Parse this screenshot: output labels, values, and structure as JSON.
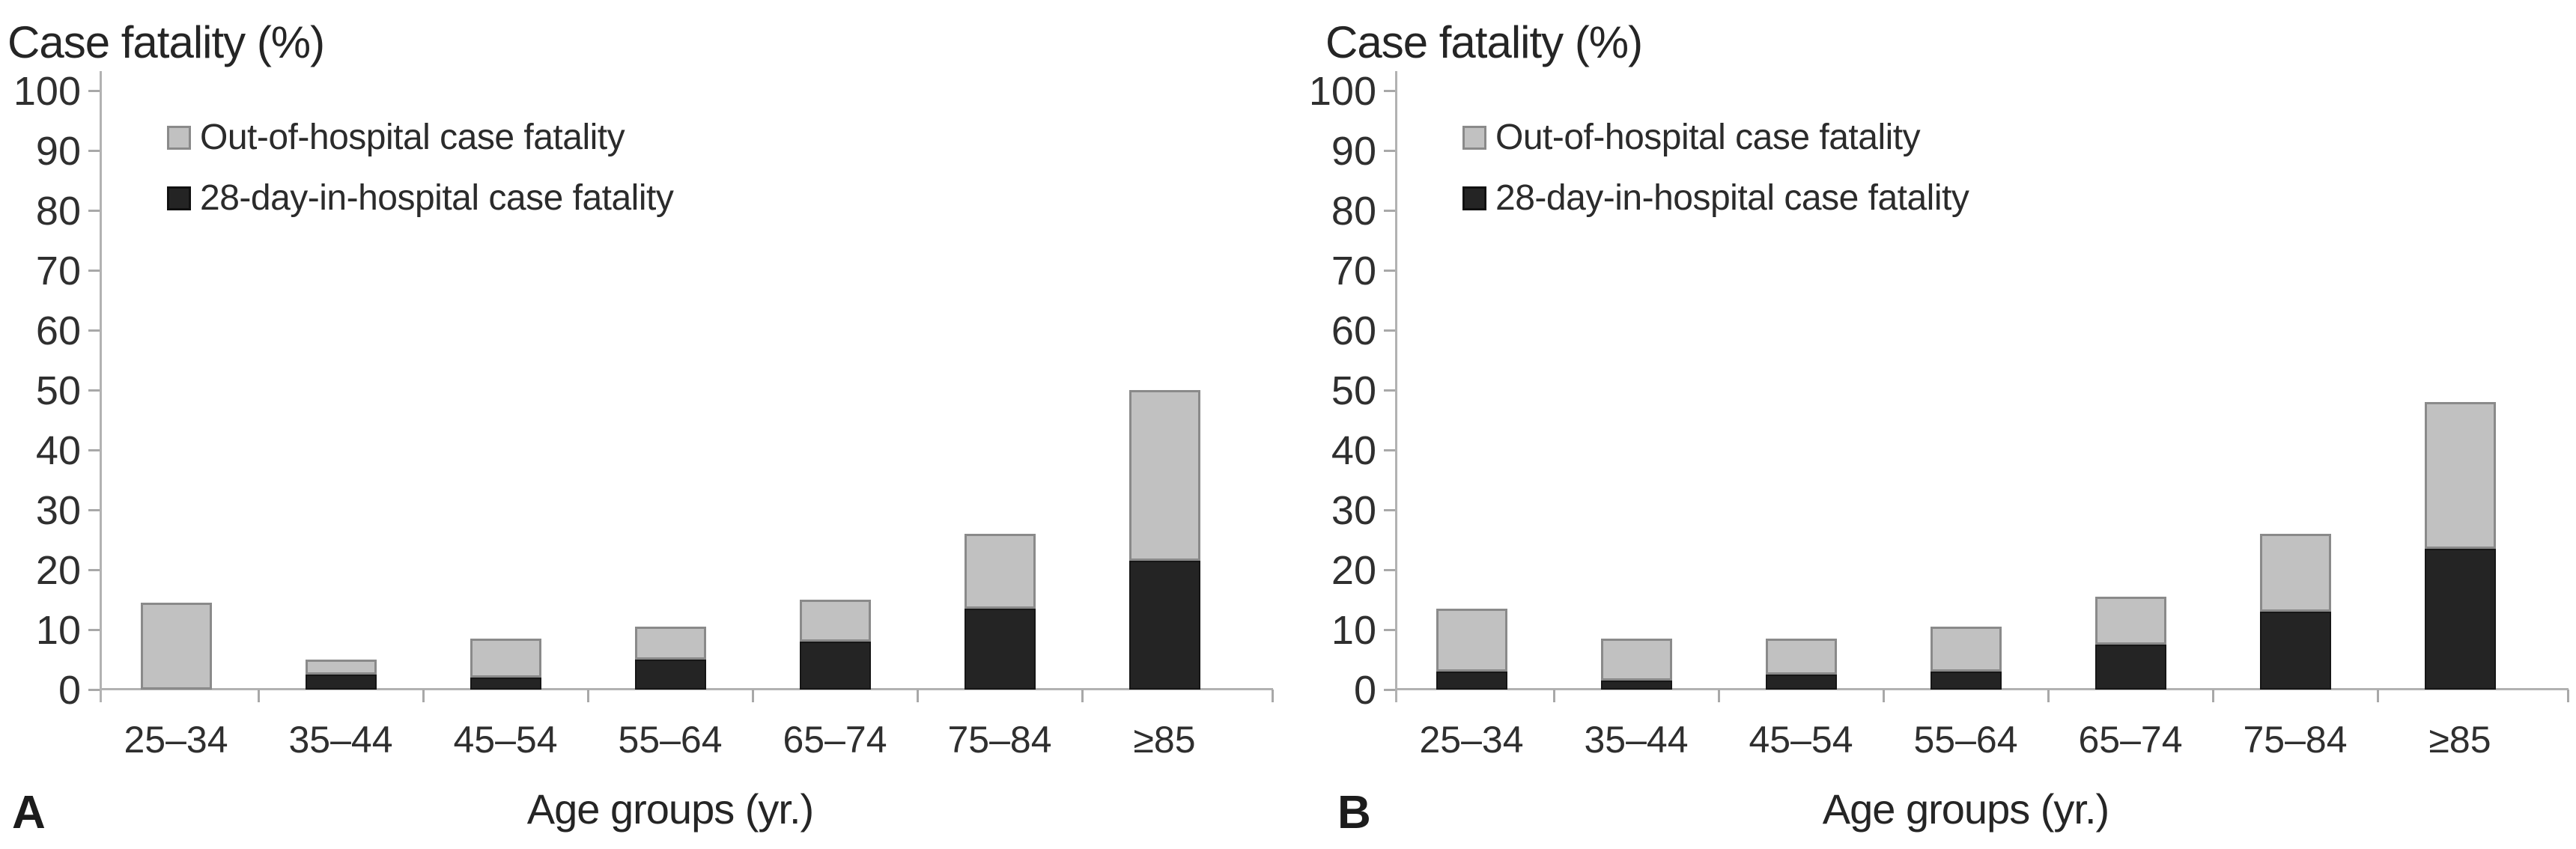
{
  "colors": {
    "background": "#ffffff",
    "axis": "#b2b2b2",
    "tick": "#a8a8a8",
    "text": "#2f2f2f",
    "bar_out_fill": "#c1c1c1",
    "bar_out_border": "#8a8a8a",
    "bar_in_fill": "#242424"
  },
  "chart_data": [
    {
      "type": "bar",
      "stacked": true,
      "panel_label": "A",
      "title": "Case fatality (%)",
      "xlabel": "Age groups (yr.)",
      "ylabel": "Case fatality (%)",
      "categories": [
        "25–34",
        "35–44",
        "45–54",
        "55–64",
        "65–74",
        "75–84",
        "≥85"
      ],
      "series": [
        {
          "name": "28-day-in-hospital case fatality",
          "color": "#242424",
          "values": [
            0,
            2.5,
            2,
            5,
            8,
            13.5,
            21.5
          ]
        },
        {
          "name": "Out-of-hospital case fatality",
          "color": "#c1c1c1",
          "values": [
            14.5,
            2.5,
            6.5,
            5.5,
            7,
            12.5,
            28.5
          ]
        }
      ],
      "totals": [
        14.5,
        5,
        8.5,
        10.5,
        15,
        26,
        50
      ],
      "ylim": [
        0,
        100
      ],
      "ytick_step": 10,
      "grid": false,
      "legend_position": "top-left"
    },
    {
      "type": "bar",
      "stacked": true,
      "panel_label": "B",
      "title": "Case fatality (%)",
      "xlabel": "Age groups (yr.)",
      "ylabel": "Case fatality (%)",
      "categories": [
        "25–34",
        "35–44",
        "45–54",
        "55–64",
        "65–74",
        "75–84",
        "≥85"
      ],
      "series": [
        {
          "name": "28-day-in-hospital case fatality",
          "color": "#242424",
          "values": [
            3,
            1.5,
            2.5,
            3,
            7.5,
            13,
            23.5
          ]
        },
        {
          "name": "Out-of-hospital case fatality",
          "color": "#c1c1c1",
          "values": [
            10.5,
            7,
            6,
            7.5,
            8,
            13,
            24.5
          ]
        }
      ],
      "totals": [
        13.5,
        8.5,
        8.5,
        10.5,
        15.5,
        26,
        48
      ],
      "ylim": [
        0,
        100
      ],
      "ytick_step": 10,
      "grid": false,
      "legend_position": "top-left"
    }
  ]
}
